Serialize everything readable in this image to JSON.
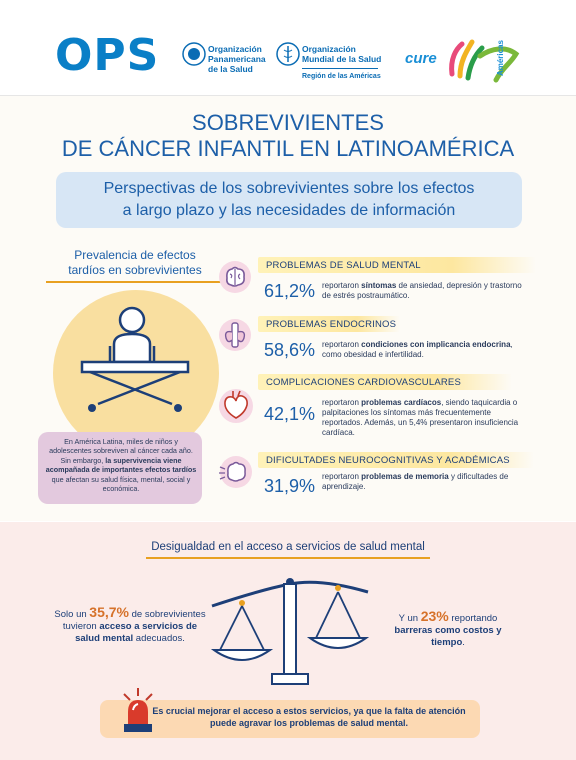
{
  "header": {
    "ops_logo": "OPS",
    "org1_line1": "Organización",
    "org1_line2": "Panamericana",
    "org1_line3": "de la Salud",
    "org2_line1": "Organización",
    "org2_line2": "Mundial de la Salud",
    "org2_region": "Región de las Américas",
    "cure_logo": "cure",
    "americas_logo": "Américas"
  },
  "title": {
    "line1": "SOBREVIVIENTES",
    "line2": "DE CÁNCER INFANTIL EN LATINOAMÉRICA"
  },
  "subtitle": {
    "line1": "Perspectivas de los sobrevivientes sobre los efectos",
    "line2": "a largo plazo y las necesidades de información"
  },
  "prevalence": {
    "line1": "Prevalencia de efectos",
    "line2": "tardíos en sobrevivientes"
  },
  "intro": {
    "part1": "En América Latina, miles de niños y adolescentes sobreviven al cáncer cada año. Sin embargo, ",
    "bold": "la supervivencia viene acompañada de importantes efectos tardíos",
    "part2": " que afectan su salud física, mental, social y económica."
  },
  "rows": [
    {
      "label": "PROBLEMAS DE SALUD MENTAL",
      "pct": "61,2%",
      "pre": "reportaron ",
      "bold": "síntomas",
      "post": " de ansiedad, depresión y trastorno de estrés postraumático.",
      "icon": "brain-icon"
    },
    {
      "label": "PROBLEMAS ENDOCRINOS",
      "pct": "58,6%",
      "pre": "reportaron ",
      "bold": "condiciones con implicancia endocrina",
      "post": ", como obesidad e infertilidad.",
      "icon": "thyroid-icon"
    },
    {
      "label": "COMPLICACIONES CARDIOVASCULARES",
      "pct": "42,1%",
      "pre": "reportaron ",
      "bold": "problemas cardíacos",
      "post": ", siendo taquicardia o palpitaciones los síntomas más frecuentemente reportados. Además, un 5,4% presentaron insuficiencia cardíaca.",
      "icon": "heart-icon"
    },
    {
      "label": "DIFICULTADES NEUROCOGNITIVAS Y ACADÉMICAS",
      "pct": "31,9%",
      "pre": "reportaron ",
      "bold": "problemas de memoria",
      "post": " y dificultades de aprendizaje.",
      "icon": "neuro-icon"
    }
  ],
  "inequality": {
    "title": "Desigualdad en el acceso a servicios de salud mental",
    "left_pre": "Solo un ",
    "left_num": "35,7%",
    "left_mid": " de sobrevivientes tuvieron ",
    "left_bold": "acceso a servicios de salud mental",
    "left_post": " adecuados.",
    "right_pre": "Y un ",
    "right_num": "23%",
    "right_mid": " reportando ",
    "right_bold": "barreras como costos y tiempo",
    "right_post": "."
  },
  "alert": {
    "text": "Es crucial mejorar el acceso a estos servicios, ya que la falta de atención puede agravar los problemas de salud mental."
  },
  "colors": {
    "blue": "#1d5fa8",
    "orange": "#e8a020",
    "yellow": "#fde7a0",
    "pink": "#e3c9de"
  }
}
